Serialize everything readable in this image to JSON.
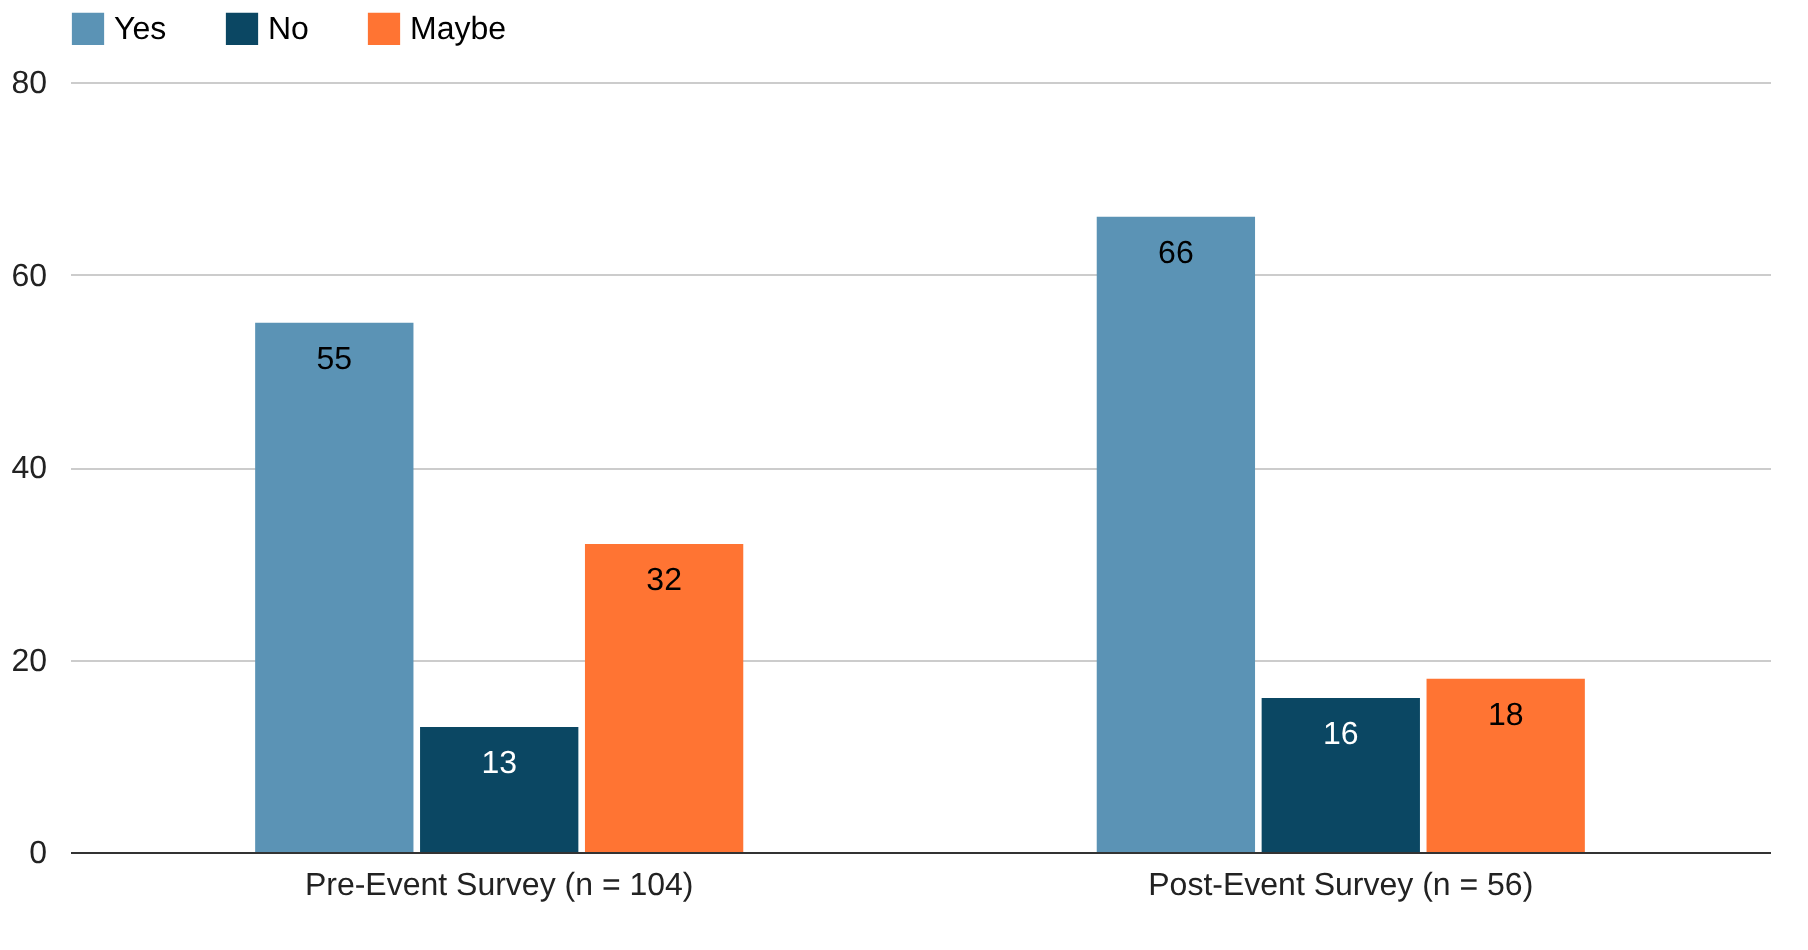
{
  "chart_data": {
    "type": "bar",
    "categories": [
      "Pre-Event Survey (n = 104)",
      "Post-Event Survey (n = 56)"
    ],
    "series": [
      {
        "name": "Yes",
        "color": "#5b93b5",
        "values": [
          55,
          66
        ]
      },
      {
        "name": "No",
        "color": "#0b4763",
        "values": [
          13,
          16
        ]
      },
      {
        "name": "Maybe",
        "color": "#ff7433",
        "values": [
          32,
          18
        ]
      }
    ],
    "ylim": [
      0,
      80
    ],
    "yticks": [
      0,
      20,
      40,
      60,
      80
    ],
    "grid": "y",
    "legend": "top",
    "data_labels": true
  }
}
